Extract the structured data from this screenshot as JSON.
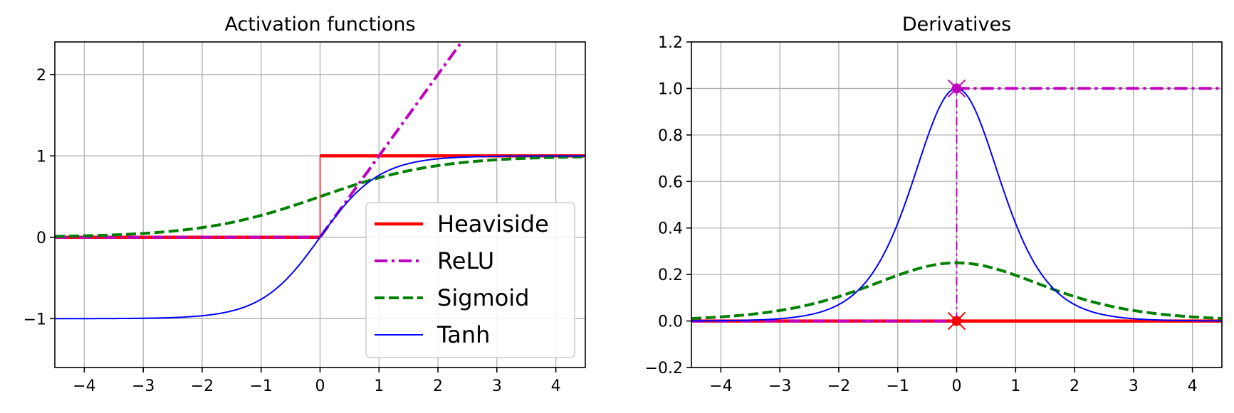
{
  "chart_data": [
    {
      "type": "line",
      "title": "Activation functions",
      "xlabel": "",
      "ylabel": "",
      "xlim": [
        -4.5,
        4.5
      ],
      "ylim": [
        -1.6,
        2.4
      ],
      "xticks": [
        -4,
        -3,
        -2,
        -1,
        0,
        1,
        2,
        3,
        4
      ],
      "xtick_labels": [
        "−4",
        "−3",
        "−2",
        "−1",
        "0",
        "1",
        "2",
        "3",
        "4"
      ],
      "yticks": [
        -1,
        0,
        1,
        2
      ],
      "ytick_labels": [
        "−1",
        "0",
        "1",
        "2"
      ],
      "grid": true,
      "legend": "lower-right",
      "series": [
        {
          "name": "Heaviside",
          "color": "#ff0000",
          "style": "solid-thick",
          "function": "heaviside",
          "points": [
            [
              -4.5,
              0
            ],
            [
              0,
              0
            ],
            [
              0,
              1
            ],
            [
              4.5,
              1
            ]
          ]
        },
        {
          "name": "ReLU",
          "color": "#bf00bf",
          "style": "dashdot",
          "function": "relu",
          "points": [
            [
              -4.5,
              0
            ],
            [
              0,
              0
            ],
            [
              2.4,
              2.4
            ]
          ]
        },
        {
          "name": "Sigmoid",
          "color": "#008000",
          "style": "dashed",
          "function": "sigmoid",
          "points": [
            [
              -4.5,
              0.011
            ],
            [
              -3,
              0.047
            ],
            [
              -2,
              0.119
            ],
            [
              -1,
              0.269
            ],
            [
              0,
              0.5
            ],
            [
              1,
              0.731
            ],
            [
              2,
              0.881
            ],
            [
              3,
              0.953
            ],
            [
              4.5,
              0.989
            ]
          ]
        },
        {
          "name": "Tanh",
          "color": "#0000ff",
          "style": "solid-thin",
          "function": "tanh",
          "points": [
            [
              -4.5,
              -1.0
            ],
            [
              -2,
              -0.964
            ],
            [
              -1,
              -0.762
            ],
            [
              0,
              0
            ],
            [
              1,
              0.762
            ],
            [
              2,
              0.964
            ],
            [
              4.5,
              1.0
            ]
          ]
        }
      ]
    },
    {
      "type": "line",
      "title": "Derivatives",
      "xlabel": "",
      "ylabel": "",
      "xlim": [
        -4.5,
        4.5
      ],
      "ylim": [
        -0.2,
        1.2
      ],
      "xticks": [
        -4,
        -3,
        -2,
        -1,
        0,
        1,
        2,
        3,
        4
      ],
      "xtick_labels": [
        "−4",
        "−3",
        "−2",
        "−1",
        "0",
        "1",
        "2",
        "3",
        "4"
      ],
      "yticks": [
        -0.2,
        0.0,
        0.2,
        0.4,
        0.6,
        0.8,
        1.0,
        1.2
      ],
      "ytick_labels": [
        "−0.2",
        "0.0",
        "0.2",
        "0.4",
        "0.6",
        "0.8",
        "1.0",
        "1.2"
      ],
      "grid": true,
      "series": [
        {
          "name": "Heaviside",
          "color": "#ff0000",
          "style": "solid-thick",
          "function": "heaviside_deriv",
          "points": [
            [
              -4.5,
              0
            ],
            [
              4.5,
              0
            ]
          ]
        },
        {
          "name": "ReLU",
          "color": "#bf00bf",
          "style": "dashdot",
          "function": "relu_deriv",
          "points": [
            [
              -4.5,
              0
            ],
            [
              0,
              0
            ],
            [
              0,
              1
            ],
            [
              4.5,
              1
            ]
          ]
        },
        {
          "name": "Sigmoid",
          "color": "#008000",
          "style": "dashed",
          "function": "sigmoid_deriv",
          "points": [
            [
              -4.5,
              0.011
            ],
            [
              -2,
              0.105
            ],
            [
              -1,
              0.197
            ],
            [
              0,
              0.25
            ],
            [
              1,
              0.197
            ],
            [
              2,
              0.105
            ],
            [
              4.5,
              0.011
            ]
          ]
        },
        {
          "name": "Tanh",
          "color": "#0000ff",
          "style": "solid-thin",
          "function": "tanh_deriv",
          "points": [
            [
              -4.5,
              0.0
            ],
            [
              -2,
              0.071
            ],
            [
              -1,
              0.42
            ],
            [
              0,
              1.0
            ],
            [
              1,
              0.42
            ],
            [
              2,
              0.071
            ],
            [
              4.5,
              0.0
            ]
          ]
        }
      ],
      "markers": [
        {
          "x": 0,
          "y": 1,
          "shape": "x",
          "color": "#bf00bf"
        },
        {
          "x": 0,
          "y": 1,
          "shape": "circle",
          "color": "#bf00bf"
        },
        {
          "x": 0,
          "y": 0,
          "shape": "x",
          "color": "#ff0000"
        },
        {
          "x": 0,
          "y": 0,
          "shape": "circle",
          "color": "#ff0000"
        }
      ]
    }
  ]
}
